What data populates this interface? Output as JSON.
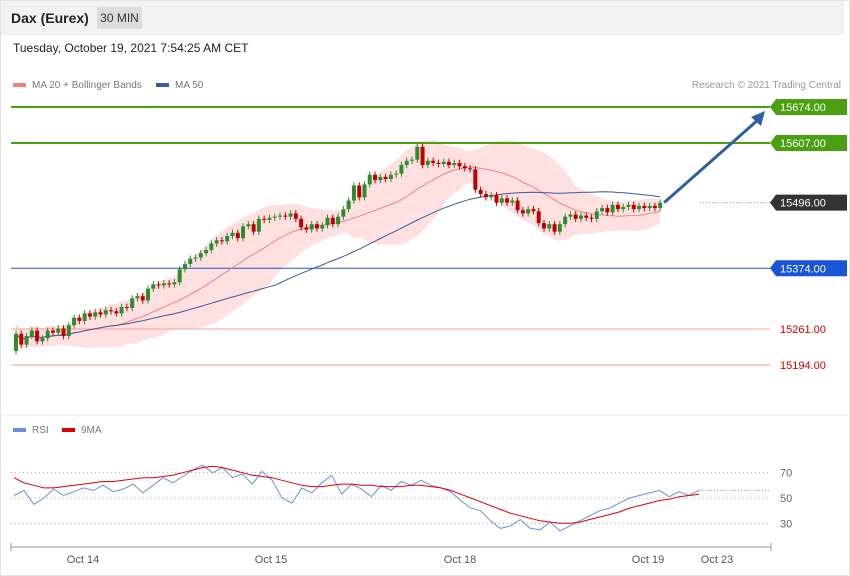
{
  "header": {
    "title": "Dax (Eurex)",
    "timeframe": "30 MIN"
  },
  "timestamp": "Tuesday, October 19, 2021 7:54:25 AM CET",
  "legend": {
    "ma20": "MA 20 + Bollinger Bands",
    "ma50": "MA 50",
    "rsi": "RSI",
    "rsi_ma": "9MA"
  },
  "credit": "Research © 2021 Trading Central",
  "colors": {
    "up": "#2e8b2e",
    "down": "#c00000",
    "ma20": "#f08080",
    "ma50": "#3a5a9a",
    "band": "#ffd6d6",
    "resistance": "#4aa010",
    "pivot": "#1a55d8",
    "support": "#ff9a9a",
    "current": "#333333",
    "rsi": "#6a8fe0",
    "rsi_ma": "#e00000",
    "arrow": "#2f5fa0"
  },
  "chart_data": [
    {
      "type": "candlestick",
      "title": "Dax (Eurex)",
      "timeframe": "30 MIN",
      "x_labels": [
        "Oct 14",
        "Oct 15",
        "Oct 18",
        "Oct 19",
        "Oct 23"
      ],
      "ylim": [
        15120,
        15710
      ],
      "levels": [
        {
          "label": "15674.00",
          "value": 15674,
          "kind": "resistance"
        },
        {
          "label": "15607.00",
          "value": 15607,
          "kind": "resistance"
        },
        {
          "label": "15496.00",
          "value": 15496,
          "kind": "current"
        },
        {
          "label": "15374.00",
          "value": 15374,
          "kind": "pivot"
        },
        {
          "label": "15261.00",
          "value": 15261,
          "kind": "support"
        },
        {
          "label": "15194.00",
          "value": 15194,
          "kind": "support"
        }
      ],
      "projection": {
        "from": 15496,
        "to": 15674
      },
      "series": [
        {
          "name": "MA 20 + Bollinger Bands",
          "kind": "ma20"
        },
        {
          "name": "MA 50",
          "kind": "ma50"
        }
      ],
      "candles": [
        [
          15220,
          15252
        ],
        [
          15252,
          15232
        ],
        [
          15232,
          15248
        ],
        [
          15248,
          15258
        ],
        [
          15258,
          15238
        ],
        [
          15238,
          15244
        ],
        [
          15244,
          15258
        ],
        [
          15258,
          15254
        ],
        [
          15254,
          15262
        ],
        [
          15262,
          15248
        ],
        [
          15248,
          15268
        ],
        [
          15268,
          15282
        ],
        [
          15282,
          15276
        ],
        [
          15276,
          15290
        ],
        [
          15290,
          15284
        ],
        [
          15284,
          15292
        ],
        [
          15292,
          15288
        ],
        [
          15288,
          15296
        ],
        [
          15296,
          15294
        ],
        [
          15294,
          15290
        ],
        [
          15290,
          15302
        ],
        [
          15302,
          15300
        ],
        [
          15300,
          15318
        ],
        [
          15318,
          15322
        ],
        [
          15322,
          15314
        ],
        [
          15314,
          15336
        ],
        [
          15336,
          15344
        ],
        [
          15344,
          15342
        ],
        [
          15342,
          15346
        ],
        [
          15346,
          15344
        ],
        [
          15344,
          15348
        ],
        [
          15348,
          15372
        ],
        [
          15372,
          15382
        ],
        [
          15382,
          15392
        ],
        [
          15392,
          15394
        ],
        [
          15394,
          15402
        ],
        [
          15402,
          15408
        ],
        [
          15408,
          15420
        ],
        [
          15420,
          15426
        ],
        [
          15426,
          15424
        ],
        [
          15424,
          15434
        ],
        [
          15434,
          15440
        ],
        [
          15440,
          15430
        ],
        [
          15430,
          15452
        ],
        [
          15452,
          15456
        ],
        [
          15456,
          15442
        ],
        [
          15442,
          15466
        ],
        [
          15466,
          15464
        ],
        [
          15464,
          15468
        ],
        [
          15468,
          15470
        ],
        [
          15470,
          15472
        ],
        [
          15472,
          15470
        ],
        [
          15470,
          15476
        ],
        [
          15476,
          15466
        ],
        [
          15466,
          15450
        ],
        [
          15450,
          15446
        ],
        [
          15446,
          15456
        ],
        [
          15456,
          15448
        ],
        [
          15448,
          15454
        ],
        [
          15454,
          15468
        ],
        [
          15468,
          15456
        ],
        [
          15456,
          15470
        ],
        [
          15470,
          15484
        ],
        [
          15484,
          15500
        ],
        [
          15500,
          15528
        ],
        [
          15528,
          15506
        ],
        [
          15506,
          15530
        ],
        [
          15530,
          15548
        ],
        [
          15548,
          15538
        ],
        [
          15538,
          15544
        ],
        [
          15544,
          15540
        ],
        [
          15540,
          15548
        ],
        [
          15548,
          15550
        ],
        [
          15550,
          15566
        ],
        [
          15566,
          15574
        ],
        [
          15574,
          15576
        ],
        [
          15576,
          15600
        ],
        [
          15600,
          15566
        ],
        [
          15566,
          15574
        ],
        [
          15574,
          15570
        ],
        [
          15570,
          15568
        ],
        [
          15568,
          15572
        ],
        [
          15572,
          15566
        ],
        [
          15566,
          15570
        ],
        [
          15570,
          15564
        ],
        [
          15564,
          15560
        ],
        [
          15560,
          15558
        ],
        [
          15558,
          15520
        ],
        [
          15520,
          15512
        ],
        [
          15512,
          15506
        ],
        [
          15506,
          15510
        ],
        [
          15510,
          15496
        ],
        [
          15496,
          15504
        ],
        [
          15504,
          15496
        ],
        [
          15496,
          15500
        ],
        [
          15500,
          15482
        ],
        [
          15482,
          15476
        ],
        [
          15476,
          15484
        ],
        [
          15484,
          15480
        ],
        [
          15480,
          15458
        ],
        [
          15458,
          15448
        ],
        [
          15448,
          15456
        ],
        [
          15456,
          15442
        ],
        [
          15442,
          15456
        ],
        [
          15456,
          15470
        ],
        [
          15470,
          15474
        ],
        [
          15474,
          15466
        ],
        [
          15466,
          15472
        ],
        [
          15472,
          15468
        ],
        [
          15468,
          15466
        ],
        [
          15466,
          15480
        ],
        [
          15480,
          15486
        ],
        [
          15486,
          15478
        ],
        [
          15478,
          15492
        ],
        [
          15492,
          15484
        ],
        [
          15484,
          15488
        ],
        [
          15488,
          15492
        ],
        [
          15492,
          15484
        ],
        [
          15484,
          15490
        ],
        [
          15490,
          15486
        ],
        [
          15486,
          15490
        ],
        [
          15490,
          15486
        ],
        [
          15486,
          15496
        ]
      ]
    },
    {
      "type": "line",
      "title": "RSI",
      "ylim": [
        20,
        80
      ],
      "yticks": [
        70,
        50,
        30
      ],
      "series": [
        {
          "name": "RSI",
          "values": [
            52,
            56,
            45,
            50,
            57,
            52,
            55,
            58,
            56,
            60,
            55,
            57,
            61,
            54,
            60,
            66,
            62,
            67,
            72,
            76,
            70,
            74,
            66,
            69,
            61,
            71,
            64,
            50,
            46,
            58,
            54,
            62,
            68,
            53,
            61,
            57,
            51,
            60,
            56,
            63,
            60,
            64,
            60,
            58,
            55,
            48,
            42,
            40,
            32,
            26,
            28,
            33,
            26,
            25,
            31,
            24,
            28,
            32,
            36,
            40,
            42,
            46,
            50,
            52,
            54,
            56,
            51,
            55,
            52,
            56
          ]
        },
        {
          "name": "9MA",
          "values": [
            66,
            62,
            60,
            58,
            58,
            59,
            60,
            61,
            62,
            63,
            63,
            64,
            65,
            66,
            66,
            67,
            68,
            70,
            72,
            74,
            75,
            74,
            72,
            70,
            68,
            67,
            66,
            64,
            62,
            60,
            59,
            59,
            60,
            61,
            61,
            60,
            60,
            59,
            59,
            59,
            60,
            60,
            59,
            58,
            56,
            53,
            50,
            47,
            44,
            41,
            38,
            36,
            34,
            32,
            31,
            30,
            30,
            31,
            33,
            35,
            37,
            39,
            42,
            44,
            46,
            48,
            49,
            51,
            52,
            53
          ]
        }
      ]
    }
  ]
}
